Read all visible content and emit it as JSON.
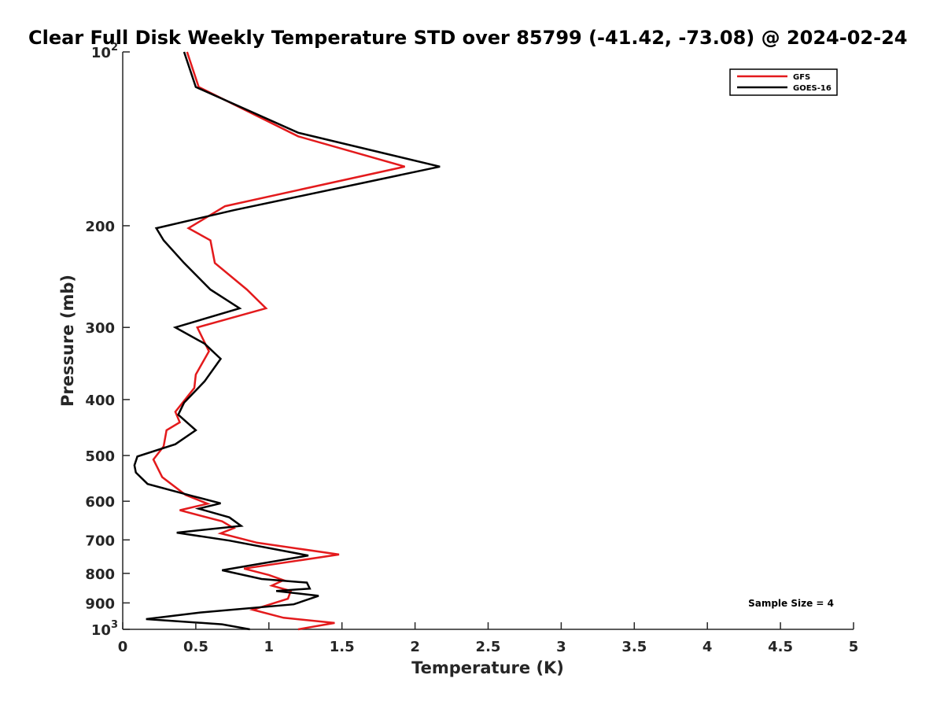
{
  "chart_data": {
    "type": "line",
    "title": "Clear Full Disk Weekly Temperature STD over 85799 (-41.42, -73.08) @ 2024-02-24",
    "xlabel": "Temperature (K)",
    "ylabel": "Pressure (mb)",
    "xlim": [
      0,
      5
    ],
    "ylim": [
      100,
      1000
    ],
    "y_scale": "log",
    "y_reversed": true,
    "x_ticks": [
      "0",
      "0.5",
      "1",
      "1.5",
      "2",
      "2.5",
      "3",
      "3.5",
      "4",
      "4.5",
      "5"
    ],
    "y_ticks": [
      {
        "value": 100,
        "label": "10",
        "sup": "2"
      },
      {
        "value": 200,
        "label": "200",
        "sup": ""
      },
      {
        "value": 300,
        "label": "300",
        "sup": ""
      },
      {
        "value": 400,
        "label": "400",
        "sup": ""
      },
      {
        "value": 500,
        "label": "500",
        "sup": ""
      },
      {
        "value": 600,
        "label": "600",
        "sup": ""
      },
      {
        "value": 700,
        "label": "700",
        "sup": ""
      },
      {
        "value": 800,
        "label": "800",
        "sup": ""
      },
      {
        "value": 900,
        "label": "900",
        "sup": ""
      },
      {
        "value": 1000,
        "label": "10",
        "sup": "3"
      }
    ],
    "grid": false,
    "legend_position": "top-right",
    "annotation": "Sample Size = 4",
    "series": [
      {
        "name": "GFS",
        "color": "#e31a1c",
        "points": [
          [
            0.44,
            100
          ],
          [
            0.52,
            115
          ],
          [
            1.2,
            140
          ],
          [
            1.93,
            158
          ],
          [
            0.7,
            185
          ],
          [
            0.45,
            202
          ],
          [
            0.6,
            212
          ],
          [
            0.63,
            232
          ],
          [
            0.85,
            258
          ],
          [
            0.98,
            278
          ],
          [
            0.51,
            300
          ],
          [
            0.59,
            330
          ],
          [
            0.5,
            362
          ],
          [
            0.49,
            382
          ],
          [
            0.36,
            420
          ],
          [
            0.39,
            438
          ],
          [
            0.3,
            452
          ],
          [
            0.28,
            482
          ],
          [
            0.21,
            508
          ],
          [
            0.27,
            545
          ],
          [
            0.43,
            585
          ],
          [
            0.58,
            606
          ],
          [
            0.39,
            622
          ],
          [
            0.68,
            650
          ],
          [
            0.76,
            668
          ],
          [
            0.67,
            682
          ],
          [
            0.92,
            708
          ],
          [
            1.48,
            742
          ],
          [
            0.83,
            785
          ],
          [
            1.0,
            805
          ],
          [
            1.1,
            822
          ],
          [
            1.02,
            840
          ],
          [
            1.15,
            858
          ],
          [
            1.13,
            885
          ],
          [
            0.89,
            925
          ],
          [
            1.1,
            955
          ],
          [
            1.45,
            975
          ],
          [
            1.2,
            1000
          ]
        ]
      },
      {
        "name": "GOES-16",
        "color": "#000000",
        "points": [
          [
            0.42,
            100
          ],
          [
            0.5,
            115
          ],
          [
            1.2,
            138
          ],
          [
            2.17,
            158
          ],
          [
            0.76,
            188
          ],
          [
            0.23,
            202
          ],
          [
            0.28,
            212
          ],
          [
            0.42,
            232
          ],
          [
            0.6,
            258
          ],
          [
            0.8,
            278
          ],
          [
            0.36,
            300
          ],
          [
            0.56,
            320
          ],
          [
            0.67,
            340
          ],
          [
            0.56,
            372
          ],
          [
            0.42,
            405
          ],
          [
            0.38,
            425
          ],
          [
            0.5,
            452
          ],
          [
            0.36,
            478
          ],
          [
            0.1,
            502
          ],
          [
            0.08,
            520
          ],
          [
            0.09,
            535
          ],
          [
            0.17,
            560
          ],
          [
            0.48,
            588
          ],
          [
            0.67,
            605
          ],
          [
            0.52,
            618
          ],
          [
            0.73,
            640
          ],
          [
            0.81,
            662
          ],
          [
            0.37,
            680
          ],
          [
            0.73,
            702
          ],
          [
            1.27,
            745
          ],
          [
            0.68,
            790
          ],
          [
            0.95,
            818
          ],
          [
            1.26,
            830
          ],
          [
            1.28,
            850
          ],
          [
            1.05,
            858
          ],
          [
            1.34,
            875
          ],
          [
            1.17,
            905
          ],
          [
            0.53,
            935
          ],
          [
            0.16,
            960
          ],
          [
            0.68,
            980
          ],
          [
            0.87,
            1000
          ]
        ]
      }
    ]
  }
}
